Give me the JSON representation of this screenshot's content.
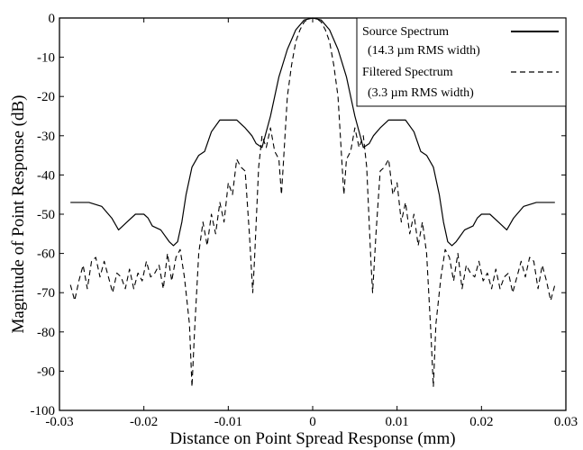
{
  "chart_data": {
    "type": "line",
    "xlabel": "Distance on Point Spread Response (mm)",
    "ylabel": "Magnitude of Point Response (dB)",
    "xlim": [
      -0.03,
      0.03
    ],
    "ylim": [
      -100,
      0
    ],
    "xticks": [
      "-0.03",
      "-0.02",
      "-0.01",
      "0",
      "0.01",
      "0.02",
      "0.03"
    ],
    "yticks": [
      "0",
      "-10",
      "-20",
      "-30",
      "-40",
      "-50",
      "-60",
      "-70",
      "-80",
      "-90",
      "-100"
    ],
    "grid": false,
    "legend_position": "top-right",
    "legend": [
      {
        "line1": "Source Spectrum",
        "line2": "(14.3 µm RMS width)",
        "style": "solid"
      },
      {
        "line1": "Filtered Spectrum",
        "line2": "(3.3 µm RMS width)",
        "style": "dashed"
      }
    ],
    "series": [
      {
        "name": "Source Spectrum",
        "style": "solid",
        "x": [
          -0.0287,
          -0.0265,
          -0.025,
          -0.0238,
          -0.023,
          -0.022,
          -0.021,
          -0.02,
          -0.0195,
          -0.019,
          -0.018,
          -0.017,
          -0.0165,
          -0.016,
          -0.0155,
          -0.015,
          -0.0143,
          -0.0135,
          -0.0128,
          -0.012,
          -0.011,
          -0.01,
          -0.009,
          -0.008,
          -0.0072,
          -0.0067,
          -0.006,
          -0.005,
          -0.004,
          -0.003,
          -0.002,
          -0.001,
          0,
          0.001,
          0.002,
          0.003,
          0.004,
          0.005,
          0.006,
          0.0067,
          0.0072,
          0.008,
          0.009,
          0.01,
          0.011,
          0.012,
          0.0128,
          0.0135,
          0.0143,
          0.015,
          0.0155,
          0.016,
          0.0165,
          0.017,
          0.018,
          0.019,
          0.0195,
          0.02,
          0.021,
          0.022,
          0.023,
          0.0238,
          0.025,
          0.0265,
          0.0287
        ],
        "y": [
          -47,
          -47,
          -48,
          -51,
          -54,
          -52,
          -50,
          -50,
          -51,
          -53,
          -54,
          -57,
          -58,
          -57,
          -52,
          -45,
          -38,
          -35,
          -34,
          -29,
          -26,
          -26,
          -26,
          -28,
          -30,
          -32,
          -33,
          -25,
          -15,
          -8,
          -3,
          -0.5,
          0,
          -0.5,
          -3,
          -8,
          -15,
          -25,
          -33,
          -32,
          -30,
          -28,
          -26,
          -26,
          -26,
          -29,
          -34,
          -35,
          -38,
          -45,
          -52,
          -57,
          -58,
          -57,
          -54,
          -53,
          -51,
          -50,
          -50,
          -52,
          -54,
          -51,
          -48,
          -47,
          -47
        ]
      },
      {
        "name": "Filtered Spectrum",
        "style": "dashed",
        "x": [
          -0.0287,
          -0.0282,
          -0.0277,
          -0.0272,
          -0.0267,
          -0.0262,
          -0.0257,
          -0.0252,
          -0.0247,
          -0.0242,
          -0.0237,
          -0.0232,
          -0.0227,
          -0.0222,
          -0.0217,
          -0.0212,
          -0.0207,
          -0.0202,
          -0.0197,
          -0.0192,
          -0.0187,
          -0.0182,
          -0.0177,
          -0.0172,
          -0.0167,
          -0.0162,
          -0.0157,
          -0.0152,
          -0.0146,
          -0.0143,
          -0.014,
          -0.0135,
          -0.013,
          -0.0125,
          -0.012,
          -0.0115,
          -0.011,
          -0.0105,
          -0.01,
          -0.0095,
          -0.009,
          -0.0085,
          -0.008,
          -0.0075,
          -0.0071,
          -0.0069,
          -0.0064,
          -0.006,
          -0.0055,
          -0.005,
          -0.0045,
          -0.004,
          -0.0037,
          -0.0035,
          -0.003,
          -0.0025,
          -0.002,
          -0.0015,
          -0.001,
          -0.0005,
          0,
          0.0005,
          0.001,
          0.0015,
          0.002,
          0.0025,
          0.003,
          0.0035,
          0.0037,
          0.004,
          0.0045,
          0.005,
          0.0055,
          0.006,
          0.0064,
          0.0069,
          0.0071,
          0.0075,
          0.008,
          0.0085,
          0.009,
          0.0095,
          0.01,
          0.0105,
          0.011,
          0.0115,
          0.012,
          0.0125,
          0.013,
          0.0135,
          0.014,
          0.0143,
          0.0146,
          0.0152,
          0.0157,
          0.0162,
          0.0167,
          0.0172,
          0.0177,
          0.0182,
          0.0187,
          0.0192,
          0.0197,
          0.0202,
          0.0207,
          0.0212,
          0.0217,
          0.0222,
          0.0227,
          0.0232,
          0.0237,
          0.0242,
          0.0247,
          0.0252,
          0.0257,
          0.0262,
          0.0267,
          0.0272,
          0.0277,
          0.0282,
          0.0287
        ],
        "y": [
          -68,
          -72,
          -67,
          -63,
          -69,
          -62,
          -61,
          -66,
          -62,
          -66,
          -70,
          -65,
          -66,
          -69,
          -64,
          -69,
          -65,
          -67,
          -62,
          -66,
          -65,
          -63,
          -69,
          -60,
          -67,
          -61,
          -59,
          -66,
          -78,
          -94,
          -80,
          -60,
          -52,
          -58,
          -50,
          -55,
          -47,
          -52,
          -42,
          -45,
          -36,
          -38,
          -39,
          -55,
          -70,
          -62,
          -38,
          -30,
          -33,
          -28,
          -34,
          -36,
          -45,
          -38,
          -20,
          -12,
          -6,
          -3,
          -1,
          -0.2,
          0,
          -0.2,
          -1,
          -3,
          -6,
          -12,
          -20,
          -38,
          -45,
          -36,
          -34,
          -28,
          -33,
          -30,
          -38,
          -62,
          -70,
          -55,
          -39,
          -38,
          -36,
          -45,
          -42,
          -52,
          -47,
          -55,
          -50,
          -58,
          -52,
          -60,
          -80,
          -94,
          -78,
          -66,
          -59,
          -61,
          -67,
          -60,
          -69,
          -63,
          -65,
          -66,
          -62,
          -67,
          -65,
          -69,
          -64,
          -69,
          -66,
          -65,
          -70,
          -66,
          -62,
          -66,
          -61,
          -62,
          -69,
          -63,
          -67,
          -72,
          -68
        ]
      }
    ]
  }
}
